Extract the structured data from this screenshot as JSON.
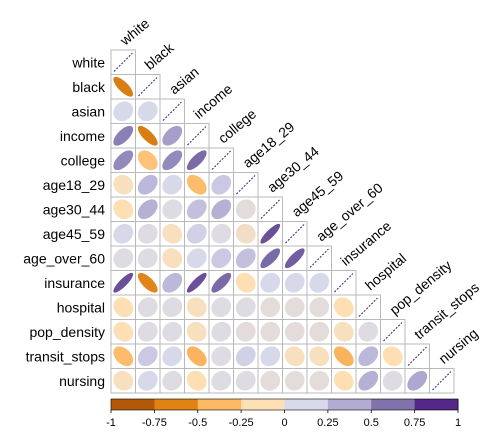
{
  "chart_data": {
    "type": "heatmap",
    "subtype": "correlation-ellipse-lower-triangle",
    "variables": [
      "white",
      "black",
      "asian",
      "income",
      "college",
      "age18_29",
      "age30_44",
      "age45_59",
      "age_over_60",
      "insurance",
      "hospital",
      "pop_density",
      "transit_stops",
      "nursing"
    ],
    "matrix": [
      [
        1
      ],
      [
        -0.75,
        1
      ],
      [
        0.15,
        0.15,
        1
      ],
      [
        0.65,
        -0.75,
        0.5,
        1
      ],
      [
        0.6,
        -0.35,
        0.6,
        0.75,
        1
      ],
      [
        -0.1,
        0.35,
        0.15,
        -0.4,
        0.25,
        1
      ],
      [
        -0.15,
        0.4,
        0.1,
        0.3,
        0.4,
        0.05,
        1
      ],
      [
        0.15,
        0.1,
        -0.1,
        0.2,
        0.1,
        -0.05,
        0.85,
        1
      ],
      [
        0.1,
        0.1,
        -0.1,
        0.15,
        0.25,
        0.3,
        0.75,
        0.8,
        1
      ],
      [
        0.85,
        -0.7,
        0.35,
        0.85,
        0.75,
        -0.15,
        0.15,
        0.15,
        0.15,
        1
      ],
      [
        -0.15,
        0.1,
        0.1,
        -0.1,
        0.1,
        0.1,
        0.05,
        0.05,
        0.05,
        -0.15,
        1
      ],
      [
        -0.15,
        0.1,
        0.1,
        -0.1,
        0.1,
        0.05,
        0.05,
        0.05,
        0.05,
        -0.1,
        0.1,
        1
      ],
      [
        -0.4,
        0.25,
        0.15,
        -0.45,
        0.1,
        0.2,
        0.15,
        -0.1,
        -0.1,
        -0.45,
        0.35,
        -0.15,
        1
      ],
      [
        -0.1,
        0.15,
        0.1,
        -0.15,
        0.1,
        0.1,
        0.05,
        0.05,
        0.05,
        -0.15,
        0.4,
        0.1,
        0.45,
        1
      ]
    ],
    "legend": {
      "type": "colorbar",
      "placement": "bottom",
      "range": [
        -1,
        1
      ],
      "tick_labels": [
        "-1",
        "-0.75",
        "-0.5",
        "-0.25",
        "0",
        "0.25",
        "0.5",
        "0.75",
        "1"
      ],
      "colors": [
        "#b35806",
        "#e08214",
        "#fdb863",
        "#fee0b6",
        "#d8daeb",
        "#b2abd2",
        "#8073ac",
        "#542788"
      ]
    }
  }
}
